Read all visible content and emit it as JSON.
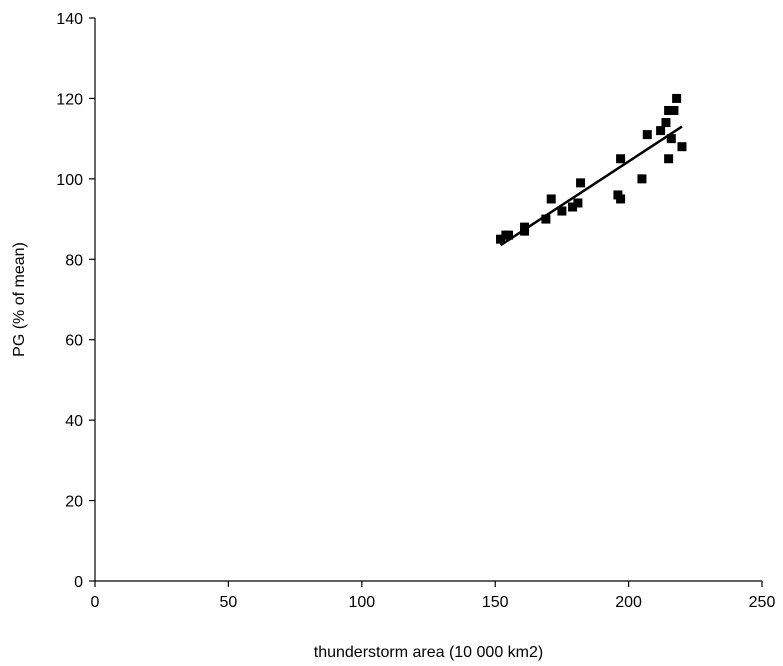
{
  "chart_data": {
    "type": "scatter",
    "title": "",
    "xlabel": "thunderstorm area (10 000 km2)",
    "ylabel": "PG (% of mean)",
    "xlim": [
      0,
      250
    ],
    "ylim": [
      0,
      140
    ],
    "xticks": [
      0,
      50,
      100,
      150,
      200,
      250
    ],
    "yticks": [
      0,
      20,
      40,
      60,
      80,
      100,
      120,
      140
    ],
    "xtick_labels": [
      "0",
      "50",
      "100",
      "150",
      "200",
      "250"
    ],
    "ytick_labels": [
      "0",
      "20",
      "40",
      "60",
      "80",
      "100",
      "120",
      "140"
    ],
    "grid": false,
    "legend": "none",
    "series": [
      {
        "marker": "square",
        "color": "#000000",
        "points": [
          {
            "x": 152,
            "y": 85
          },
          {
            "x": 154,
            "y": 86
          },
          {
            "x": 155,
            "y": 86
          },
          {
            "x": 161,
            "y": 87
          },
          {
            "x": 161,
            "y": 88
          },
          {
            "x": 169,
            "y": 90
          },
          {
            "x": 171,
            "y": 95
          },
          {
            "x": 175,
            "y": 92
          },
          {
            "x": 179,
            "y": 93
          },
          {
            "x": 181,
            "y": 94
          },
          {
            "x": 182,
            "y": 99
          },
          {
            "x": 196,
            "y": 96
          },
          {
            "x": 197,
            "y": 95
          },
          {
            "x": 197,
            "y": 105
          },
          {
            "x": 205,
            "y": 100
          },
          {
            "x": 207,
            "y": 111
          },
          {
            "x": 212,
            "y": 112
          },
          {
            "x": 214,
            "y": 114
          },
          {
            "x": 215,
            "y": 105
          },
          {
            "x": 215,
            "y": 117
          },
          {
            "x": 216,
            "y": 110
          },
          {
            "x": 217,
            "y": 117
          },
          {
            "x": 218,
            "y": 120
          },
          {
            "x": 220,
            "y": 108
          }
        ]
      }
    ],
    "trendline": {
      "type": "linear",
      "color": "#000000",
      "x": [
        152,
        220
      ],
      "y": [
        83.5,
        113
      ]
    }
  }
}
